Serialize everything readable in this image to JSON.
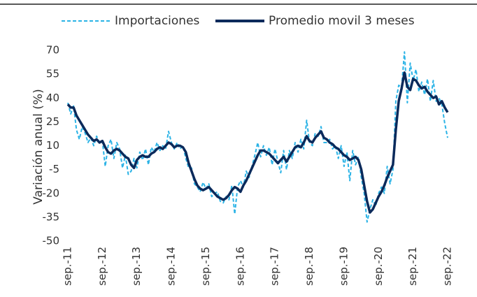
{
  "chart_data": {
    "type": "line",
    "y_label": "Variación anual (%)",
    "categories": [
      "sep.-11",
      null,
      null,
      null,
      null,
      null,
      null,
      null,
      null,
      null,
      null,
      null,
      "sep.-12",
      null,
      null,
      null,
      null,
      null,
      null,
      null,
      null,
      null,
      null,
      null,
      "sep.-13",
      null,
      null,
      null,
      null,
      null,
      null,
      null,
      null,
      null,
      null,
      null,
      "sep.-14",
      null,
      null,
      null,
      null,
      null,
      null,
      null,
      null,
      null,
      null,
      null,
      "sep.-15",
      null,
      null,
      null,
      null,
      null,
      null,
      null,
      null,
      null,
      null,
      null,
      "sep.-16",
      null,
      null,
      null,
      null,
      null,
      null,
      null,
      null,
      null,
      null,
      null,
      "sep.-17",
      null,
      null,
      null,
      null,
      null,
      null,
      null,
      null,
      null,
      null,
      null,
      "sep.-18",
      null,
      null,
      null,
      null,
      null,
      null,
      null,
      null,
      null,
      null,
      null,
      "sep.-19",
      null,
      null,
      null,
      null,
      null,
      null,
      null,
      null,
      null,
      null,
      null,
      "sep.-20",
      null,
      null,
      null,
      null,
      null,
      null,
      null,
      null,
      null,
      null,
      null,
      "sep.-21",
      null,
      null,
      null,
      null,
      null,
      null,
      null,
      null,
      null,
      null,
      null,
      "sep.-22"
    ],
    "series": [
      {
        "name": "Importaciones",
        "color": "#2bb3e6",
        "dashed": true,
        "values": [
          37,
          30,
          35,
          20,
          14,
          22,
          18,
          12,
          15,
          10,
          16,
          12,
          13,
          -3,
          10,
          14,
          2,
          12,
          8,
          -4,
          4,
          -8,
          -6,
          2,
          -4,
          6,
          1,
          8,
          -2,
          9,
          6,
          12,
          7,
          10,
          8,
          19,
          12,
          8,
          12,
          8,
          10,
          2,
          -4,
          -4,
          -14,
          -16,
          -19,
          -13,
          -17,
          -14,
          -22,
          -20,
          -19,
          -25,
          -26,
          -22,
          -24,
          -15,
          -33,
          -16,
          -12,
          -16,
          -6,
          -10,
          -3,
          4,
          12,
          3,
          10,
          4,
          9,
          -2,
          8,
          0,
          -7,
          7,
          -5,
          7,
          2,
          12,
          6,
          14,
          8,
          26,
          12,
          10,
          18,
          16,
          22,
          12,
          12,
          14,
          8,
          10,
          2,
          10,
          -3,
          6,
          -12,
          7,
          -2,
          3,
          -10,
          -20,
          -38,
          -30,
          -24,
          -28,
          -20,
          -16,
          -20,
          -3,
          -14,
          -5,
          38,
          48,
          47,
          69,
          37,
          62,
          51,
          58,
          44,
          50,
          42,
          52,
          38,
          51,
          38,
          40,
          36,
          24,
          15
        ]
      },
      {
        "name": "Promedio movil 3 meses",
        "color": "#0b2a5b",
        "dashed": false,
        "values": [
          36,
          34,
          34,
          29,
          26,
          23,
          20,
          17,
          15,
          13,
          14,
          12,
          13,
          9,
          6,
          5,
          7,
          8,
          7,
          5,
          3,
          2,
          -2,
          -4,
          1,
          3,
          4,
          3,
          3,
          5,
          6,
          8,
          9,
          8,
          10,
          12,
          11,
          9,
          10,
          10,
          9,
          6,
          -1,
          -6,
          -11,
          -15,
          -17,
          -18,
          -17,
          -16,
          -18,
          -20,
          -22,
          -23,
          -24,
          -23,
          -21,
          -18,
          -16,
          -17,
          -19,
          -15,
          -12,
          -8,
          -4,
          0,
          4,
          7,
          7,
          6,
          5,
          3,
          1,
          -1,
          1,
          3,
          0,
          3,
          6,
          9,
          10,
          9,
          12,
          16,
          13,
          12,
          15,
          17,
          19,
          15,
          14,
          12,
          11,
          9,
          8,
          6,
          4,
          3,
          1,
          2,
          3,
          1,
          -5,
          -15,
          -25,
          -32,
          -30,
          -26,
          -22,
          -19,
          -15,
          -10,
          -6,
          -2,
          20,
          38,
          46,
          56,
          47,
          45,
          52,
          51,
          48,
          46,
          47,
          44,
          42,
          40,
          41,
          36,
          38,
          34,
          31
        ]
      }
    ],
    "ylim": [
      -50,
      70
    ],
    "yticks": [
      -50,
      -35,
      -20,
      -5,
      10,
      25,
      40,
      55,
      70
    ],
    "grid": false
  }
}
